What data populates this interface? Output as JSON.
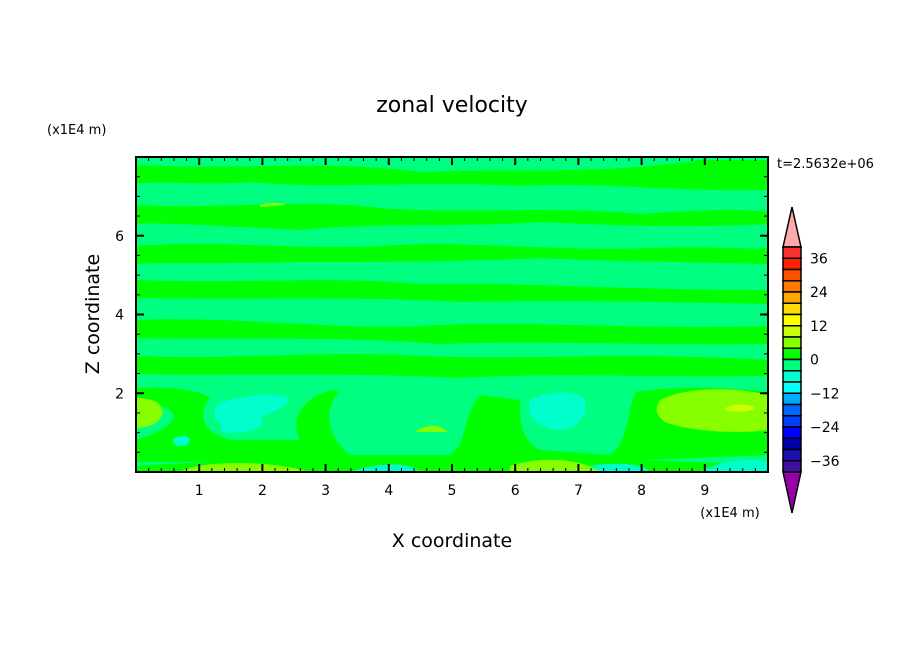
{
  "chart_data": {
    "type": "heatmap",
    "subtype": "filled-contour",
    "title": "zonal velocity",
    "xlabel": "X coordinate",
    "ylabel": "Z coordinate",
    "x_unit": "(x1E4 m)",
    "y_unit": "(x1E4 m)",
    "time_label": "t=2.5632e+06",
    "xlim": [
      0,
      10
    ],
    "ylim": [
      0,
      8
    ],
    "x_ticks": [
      1,
      2,
      3,
      4,
      5,
      6,
      7,
      8,
      9
    ],
    "y_ticks": [
      2,
      4,
      6
    ],
    "grid": false,
    "colorbar": {
      "levels": [
        -40,
        -36,
        -32,
        -28,
        -24,
        -20,
        -16,
        -12,
        -8,
        -4,
        0,
        4,
        8,
        12,
        16,
        20,
        24,
        28,
        32,
        36,
        40
      ],
      "tick_labels": [
        "36",
        "24",
        "12",
        "0",
        "-12",
        "-24",
        "-36"
      ],
      "tick_values": [
        36,
        24,
        12,
        0,
        -12,
        -24,
        -36
      ],
      "colors_high_to_low": [
        "#ff3030",
        "#ff2000",
        "#ff5000",
        "#ff7800",
        "#ffaa00",
        "#ffdd00",
        "#ffff00",
        "#ccff00",
        "#88ff00",
        "#00ff00",
        "#00ff80",
        "#00ffcc",
        "#00ffff",
        "#00aaff",
        "#0066ff",
        "#0040ff",
        "#0000ff",
        "#0000aa",
        "#1a10b0",
        "#4010a0"
      ],
      "over_color": "#ffaaaa",
      "under_color": "#9900aa",
      "placement": "right"
    },
    "field_summary_colors": {
      "dominant": "#00ff80",
      "bands": "#00ff00",
      "weak_negative": "#00ffcc",
      "weak_positive": "#88ff00",
      "peak_positive": "#ccff00"
    }
  }
}
